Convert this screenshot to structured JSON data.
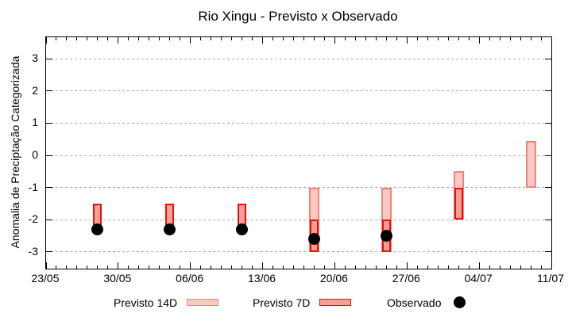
{
  "title": "Rio Xingu - Previsto x Observado",
  "legend": [
    {
      "label": "Previsto 14D",
      "type": "box",
      "fill": "#fbc9c4",
      "border": "#f0837a"
    },
    {
      "label": "Previsto 7D",
      "type": "box",
      "fill": "#fb9e95",
      "border": "#e3120b"
    },
    {
      "label": "Observado",
      "type": "dot",
      "fill": "#000000"
    }
  ],
  "colors": {
    "previsto14_fill": "#fbc9c4",
    "previsto14_border": "#f0837a",
    "previsto7_fill": "#fb9e95",
    "previsto7_border": "#e3120b",
    "observado": "#000000",
    "grid": "#a8a8a8",
    "axis": "#000000",
    "background": "#ffffff"
  },
  "chart_data": {
    "type": "bar",
    "title": "Rio Xingu - Previsto x Observado",
    "xlabel": "",
    "ylabel": "Anomalia de Preciptação Categorizada",
    "ylim": [
      -3.52,
      3.67
    ],
    "yticks": [
      3,
      2,
      1,
      0,
      -1,
      -2,
      -3
    ],
    "xlim_days": [
      0,
      49
    ],
    "xticks": [
      {
        "label": "23/05",
        "day": 0
      },
      {
        "label": "30/05",
        "day": 7
      },
      {
        "label": "06/06",
        "day": 14
      },
      {
        "label": "13/06",
        "day": 21
      },
      {
        "label": "20/06",
        "day": 28
      },
      {
        "label": "27/06",
        "day": 35
      },
      {
        "label": "04/07",
        "day": 42
      },
      {
        "label": "11/07",
        "day": 49
      }
    ],
    "minor_tick_every_days": 1,
    "grid": "dashed-horizontal",
    "legend_position": "bottom-center",
    "series": [
      {
        "name": "Previsto 14D",
        "style": "range-bar"
      },
      {
        "name": "Previsto 7D",
        "style": "range-bar"
      },
      {
        "name": "Observado",
        "style": "point"
      }
    ],
    "points": [
      {
        "date": "28/05",
        "day": 5,
        "previsto14": null,
        "previsto7": {
          "top": -1.5,
          "bottom": -2.2
        },
        "observado": -2.3
      },
      {
        "date": "04/06",
        "day": 12,
        "previsto14": null,
        "previsto7": {
          "top": -1.5,
          "bottom": -2.2
        },
        "observado": -2.3
      },
      {
        "date": "11/06",
        "day": 19,
        "previsto14": null,
        "previsto7": {
          "top": -1.5,
          "bottom": -2.2
        },
        "observado": -2.3
      },
      {
        "date": "18/06",
        "day": 26,
        "previsto14": {
          "top": -1.0,
          "bottom": -3.0
        },
        "previsto7": {
          "top": -2.0,
          "bottom": -3.0
        },
        "observado": -2.6
      },
      {
        "date": "25/06",
        "day": 33,
        "previsto14": {
          "top": -1.0,
          "bottom": -3.0
        },
        "previsto7": {
          "top": -2.0,
          "bottom": -3.0
        },
        "observado": -2.5
      },
      {
        "date": "02/07",
        "day": 40,
        "previsto14": {
          "top": -0.5,
          "bottom": -2.0
        },
        "previsto7": {
          "top": -1.0,
          "bottom": -2.0
        },
        "observado": null
      },
      {
        "date": "09/07",
        "day": 47,
        "previsto14": {
          "top": 0.45,
          "bottom": -1.0
        },
        "previsto7": null,
        "observado": null
      }
    ]
  }
}
